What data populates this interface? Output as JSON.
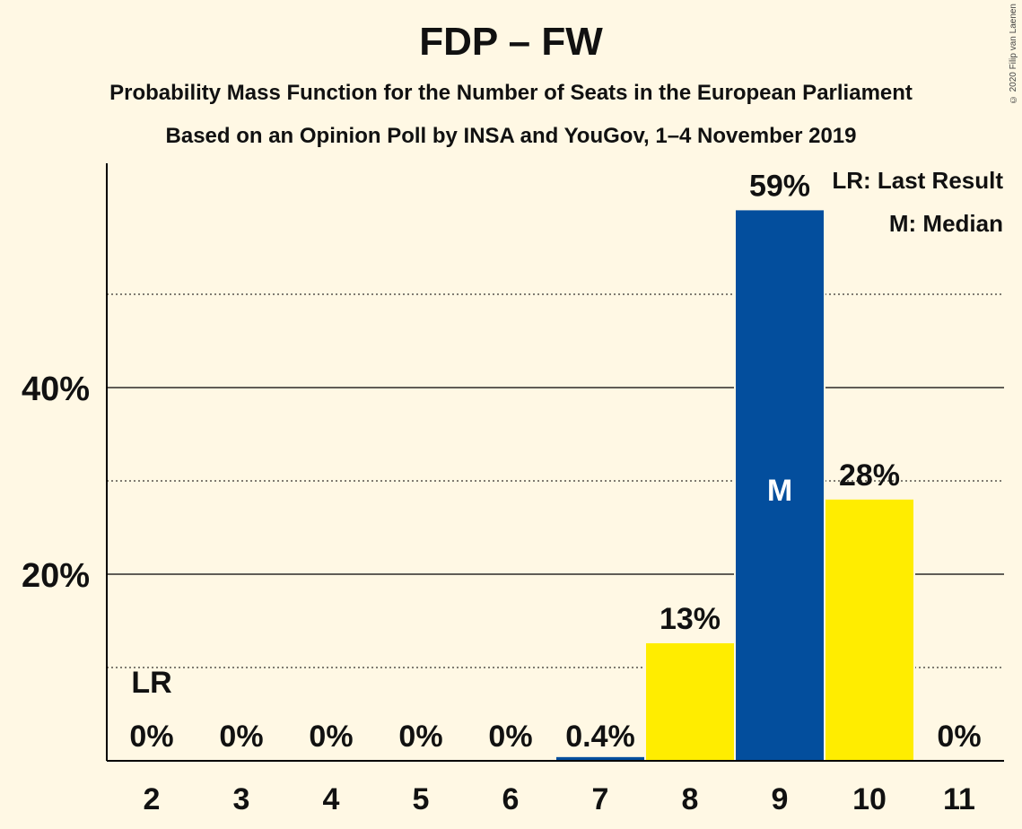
{
  "chart_data": {
    "type": "bar",
    "title": "FDP – FW",
    "subtitle1": "Probability Mass Function for the Number of Seats in the European Parliament",
    "subtitle2": "Based on an Opinion Poll by INSA and YouGov, 1–4 November 2019",
    "copyright": "© 2020 Filip van Laenen",
    "categories": [
      "2",
      "3",
      "4",
      "5",
      "6",
      "7",
      "8",
      "9",
      "10",
      "11"
    ],
    "values": [
      0,
      0,
      0,
      0,
      0,
      0.4,
      12.6,
      59,
      28,
      0
    ],
    "value_labels": [
      "0%",
      "0%",
      "0%",
      "0%",
      "0%",
      "0.4%",
      "13%",
      "59%",
      "28%",
      "0%"
    ],
    "bar_colors": [
      "#FFED00",
      "#FFED00",
      "#FFED00",
      "#FFED00",
      "#FFED00",
      "#034E9D",
      "#FFED00",
      "#034E9D",
      "#FFED00",
      "#FFED00"
    ],
    "ylim": [
      0,
      64
    ],
    "yticks": [
      20,
      40
    ],
    "ytick_labels": [
      "20%",
      "40%"
    ],
    "minor_gridlines": [
      10,
      30,
      50
    ],
    "last_result_category": "2",
    "last_result_marker": "LR",
    "median_category": "9",
    "median_marker": "M",
    "legend": [
      "LR: Last Result",
      "M: Median"
    ],
    "legend_position": "top-right",
    "colors": {
      "background": "#FFF8E4",
      "blue": "#034E9D",
      "yellow": "#FFED00"
    }
  }
}
